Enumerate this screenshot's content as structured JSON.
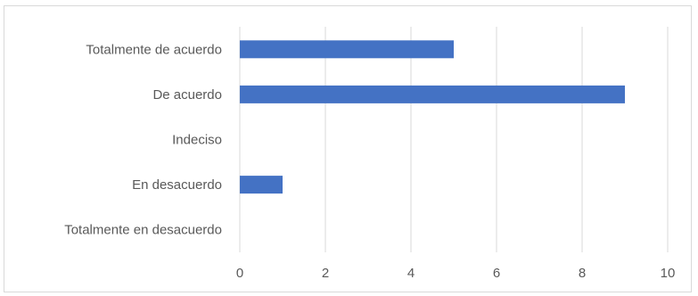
{
  "chart_data": {
    "type": "bar",
    "orientation": "horizontal",
    "categories": [
      "Totalmente de acuerdo",
      "De acuerdo",
      "Indeciso",
      "En desacuerdo",
      "Totalmente en desacuerdo"
    ],
    "values": [
      5,
      9,
      0,
      1,
      0
    ],
    "xlim": [
      0,
      10
    ],
    "xticks": [
      "0",
      "2",
      "4",
      "6",
      "8",
      "10"
    ],
    "grid": true,
    "legend": "none",
    "bar_color": "#4472c4",
    "grid_color": "#d9d9d9"
  }
}
